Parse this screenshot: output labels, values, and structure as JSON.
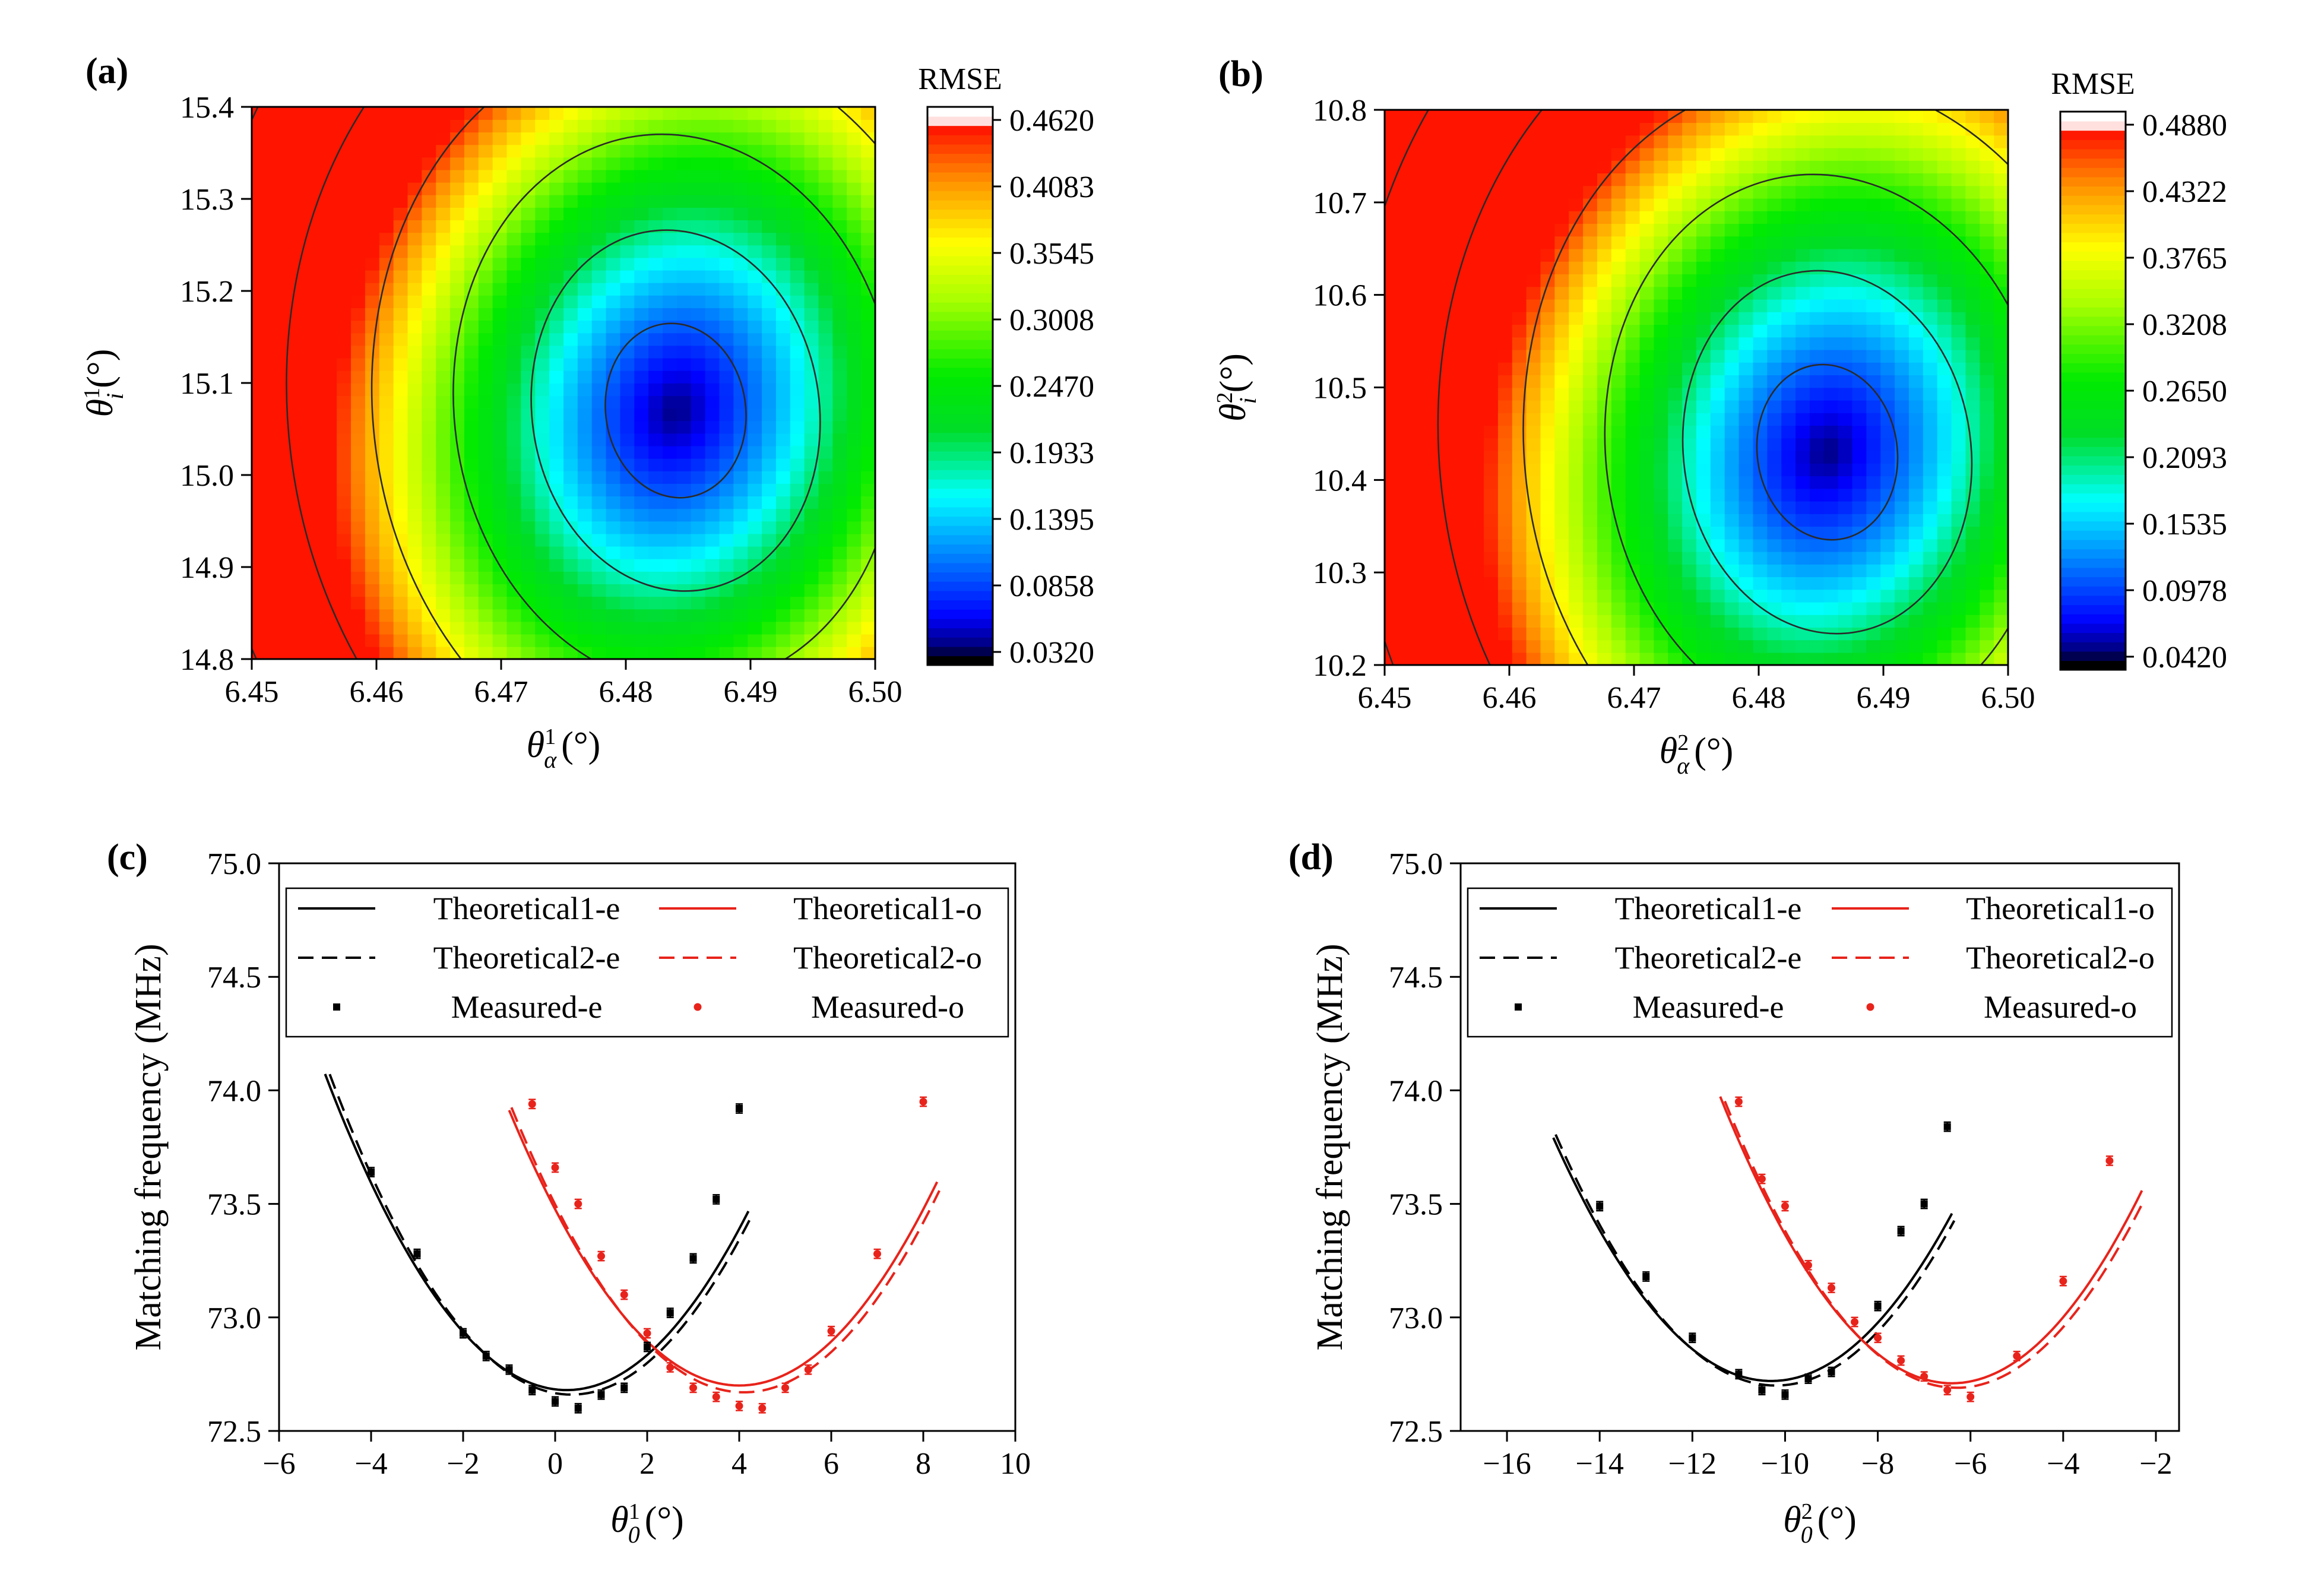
{
  "chart_data": [
    {
      "panel": "a",
      "type": "heatmap",
      "panel_label": "(a)",
      "colorbar_title": "RMSE",
      "xlabel": {
        "sym": "θ",
        "sub": "α",
        "sup": "1",
        "unit": "(°)"
      },
      "ylabel": {
        "sym": "θ",
        "sub": "i",
        "sup": "1",
        "unit": "(°)"
      },
      "xlim": [
        6.45,
        6.5
      ],
      "ylim": [
        14.8,
        15.4
      ],
      "xticks": [
        "6.45",
        "6.46",
        "6.47",
        "6.48",
        "6.49",
        "6.50"
      ],
      "yticks": [
        "14.8",
        "14.9",
        "15.0",
        "15.1",
        "15.2",
        "15.3",
        "15.4"
      ],
      "colorbar_ticks": [
        "0.4620",
        "0.4083",
        "0.3545",
        "0.3008",
        "0.2470",
        "0.1933",
        "0.1395",
        "0.0858",
        "0.0320"
      ],
      "zlim": [
        0.032,
        0.462
      ],
      "minimum": {
        "x": 6.484,
        "y": 15.07,
        "z": 0.032
      },
      "contour_levels": 8
    },
    {
      "panel": "b",
      "type": "heatmap",
      "panel_label": "(b)",
      "colorbar_title": "RMSE",
      "xlabel": {
        "sym": "θ",
        "sub": "α",
        "sup": "2",
        "unit": "(°)"
      },
      "ylabel": {
        "sym": "θ",
        "sub": "i",
        "sup": "2",
        "unit": "(°)"
      },
      "xlim": [
        6.45,
        6.5
      ],
      "ylim": [
        10.2,
        10.8
      ],
      "xticks": [
        "6.45",
        "6.46",
        "6.47",
        "6.48",
        "6.49",
        "6.50"
      ],
      "yticks": [
        "10.2",
        "10.3",
        "10.4",
        "10.5",
        "10.6",
        "10.7",
        "10.8"
      ],
      "colorbar_ticks": [
        "0.4880",
        "0.4322",
        "0.3765",
        "0.3208",
        "0.2650",
        "0.2093",
        "0.1535",
        "0.0978",
        "0.0420"
      ],
      "zlim": [
        0.042,
        0.488
      ],
      "minimum": {
        "x": 6.4855,
        "y": 10.43,
        "z": 0.042
      },
      "contour_levels": 8
    },
    {
      "panel": "c",
      "type": "line",
      "panel_label": "(c)",
      "xlabel": {
        "sym": "θ",
        "sub": "0",
        "sup": "1",
        "unit": "(°)"
      },
      "ylabel": "Matching frequency (MHz)",
      "xlim": [
        -6,
        10
      ],
      "ylim": [
        72.5,
        75
      ],
      "xticks": [
        "−6",
        "−4",
        "−2",
        "0",
        "2",
        "4",
        "6",
        "8",
        "10"
      ],
      "yticks": [
        "72.5",
        "73.0",
        "73.5",
        "74.0",
        "74.5",
        "75.0"
      ],
      "legend": [
        "Theoretical1-e",
        "Theoretical1-o",
        "Theoretical2-e",
        "Theoretical2-o",
        "Measured-e",
        "Measured-o"
      ],
      "series": [
        {
          "name": "Theoretical1-e",
          "color": "#000000",
          "dash": "solid",
          "curve": {
            "vertex_x": 0.25,
            "vertex_y": 72.68,
            "k": 0.0505,
            "x_range": [
              -5,
              4.2
            ]
          }
        },
        {
          "name": "Theoretical2-e",
          "color": "#000000",
          "dash": "dashed",
          "curve": {
            "vertex_x": 0.35,
            "vertex_y": 72.66,
            "k": 0.0512,
            "x_range": [
              -4.9,
              4.25
            ]
          }
        },
        {
          "name": "Theoretical1-o",
          "color": "#e8231b",
          "dash": "solid",
          "curve": {
            "vertex_x": 4.0,
            "vertex_y": 72.7,
            "k": 0.0485,
            "x_range": [
              -1,
              8.3
            ]
          }
        },
        {
          "name": "Theoretical2-o",
          "color": "#e8231b",
          "dash": "dashed",
          "curve": {
            "vertex_x": 4.1,
            "vertex_y": 72.67,
            "k": 0.0492,
            "x_range": [
              -0.95,
              8.35
            ]
          }
        },
        {
          "name": "Measured-e",
          "color": "#000000",
          "x": [
            -4,
            -3,
            -2,
            -1.5,
            -1,
            -0.5,
            0,
            0.5,
            1,
            1.5,
            2,
            2.5,
            3,
            3.5,
            4
          ],
          "y": [
            73.64,
            73.28,
            72.93,
            72.83,
            72.77,
            72.68,
            72.63,
            72.6,
            72.66,
            72.69,
            72.87,
            73.02,
            73.26,
            73.52,
            73.92
          ],
          "err": 0.02
        },
        {
          "name": "Measured-o",
          "color": "#e8231b",
          "x": [
            -0.5,
            0,
            0.5,
            1,
            1.5,
            2,
            2.5,
            3,
            3.5,
            4,
            4.5,
            5,
            5.5,
            6,
            7,
            8
          ],
          "y": [
            73.94,
            73.66,
            73.5,
            73.27,
            73.1,
            72.93,
            72.78,
            72.69,
            72.65,
            72.61,
            72.6,
            72.69,
            72.77,
            72.94,
            73.28,
            73.95
          ],
          "err": 0.02
        }
      ]
    },
    {
      "panel": "d",
      "type": "line",
      "panel_label": "(d)",
      "xlabel": {
        "sym": "θ",
        "sub": "0",
        "sup": "2",
        "unit": "(°)"
      },
      "ylabel": "Matching frequency (MHz)",
      "xlim": [
        -17,
        -1.5
      ],
      "ylim": [
        72.5,
        75
      ],
      "xticks": [
        "−16",
        "−14",
        "−12",
        "−10",
        "−8",
        "−6",
        "−4",
        "−2"
      ],
      "yticks": [
        "72.5",
        "73.0",
        "73.5",
        "74.0",
        "74.5",
        "75.0"
      ],
      "legend": [
        "Theoretical1-e",
        "Theoretical1-o",
        "Theoretical2-e",
        "Theoretical2-o",
        "Measured-e",
        "Measured-o"
      ],
      "series": [
        {
          "name": "Theoretical1-e",
          "color": "#000000",
          "dash": "solid",
          "curve": {
            "vertex_x": -10.3,
            "vertex_y": 72.72,
            "k": 0.0485,
            "x_range": [
              -15,
              -6.4
            ]
          }
        },
        {
          "name": "Theoretical2-e",
          "color": "#000000",
          "dash": "dashed",
          "curve": {
            "vertex_x": -10.2,
            "vertex_y": 72.7,
            "k": 0.049,
            "x_range": [
              -14.95,
              -6.35
            ]
          }
        },
        {
          "name": "Theoretical1-o",
          "color": "#e8231b",
          "dash": "solid",
          "curve": {
            "vertex_x": -6.4,
            "vertex_y": 72.71,
            "k": 0.0505,
            "x_range": [
              -11.4,
              -2.3
            ]
          }
        },
        {
          "name": "Theoretical2-o",
          "color": "#e8231b",
          "dash": "dashed",
          "curve": {
            "vertex_x": -6.3,
            "vertex_y": 72.69,
            "k": 0.0505,
            "x_range": [
              -11.3,
              -2.25
            ]
          }
        },
        {
          "name": "Measured-e",
          "color": "#000000",
          "x": [
            -14,
            -13,
            -12,
            -11,
            -10.5,
            -10,
            -9.5,
            -9,
            -8,
            -7.5,
            -7,
            -6.5
          ],
          "y": [
            73.49,
            73.18,
            72.91,
            72.75,
            72.68,
            72.66,
            72.73,
            72.76,
            73.05,
            73.38,
            73.5,
            73.84
          ],
          "err": 0.02
        },
        {
          "name": "Measured-o",
          "color": "#e8231b",
          "x": [
            -11,
            -10.5,
            -10,
            -9.5,
            -9,
            -8.5,
            -8,
            -7.5,
            -7,
            -6.5,
            -6,
            -5,
            -4,
            -3
          ],
          "y": [
            73.95,
            73.61,
            73.49,
            73.23,
            73.13,
            72.98,
            72.91,
            72.81,
            72.74,
            72.68,
            72.65,
            72.83,
            73.16,
            73.69
          ],
          "err": 0.02
        }
      ]
    }
  ]
}
